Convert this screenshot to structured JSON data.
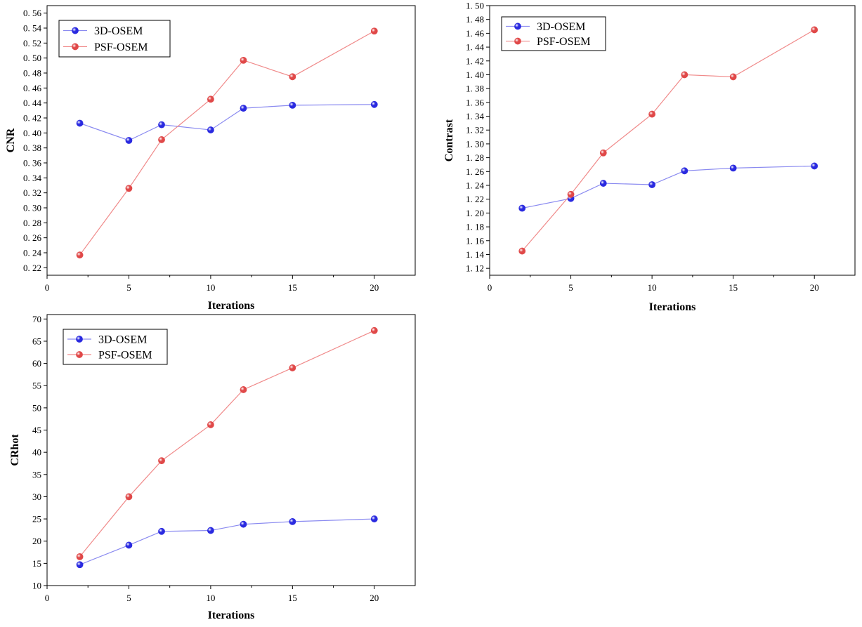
{
  "colors": {
    "series_3d": "#2a2ae0",
    "series_psf": "#e04848",
    "line_3d": "#8a8af0",
    "line_psf": "#f08a8a",
    "axis": "#000000",
    "background": "#ffffff"
  },
  "chart_data": [
    {
      "type": "line",
      "id": "cnr",
      "xlabel": "Iterations",
      "ylabel": "CNR",
      "xlim": [
        0,
        22.5
      ],
      "ylim": [
        0.21,
        0.57
      ],
      "xticks": [
        0,
        5,
        10,
        15,
        20
      ],
      "xtick_labels": [
        "0",
        "5",
        "10",
        "15",
        "20"
      ],
      "yticks": [
        0.22,
        0.24,
        0.26,
        0.28,
        0.3,
        0.32,
        0.34,
        0.36,
        0.38,
        0.4,
        0.42,
        0.44,
        0.46,
        0.48,
        0.5,
        0.52,
        0.54,
        0.56
      ],
      "ytick_labels": [
        "0. 22",
        "0. 24",
        "0. 26",
        "0. 28",
        "0. 30",
        "0. 32",
        "0. 34",
        "0. 36",
        "0. 38",
        "0. 40",
        "0. 42",
        "0. 44",
        "0. 46",
        "0. 48",
        "0. 50",
        "0. 52",
        "0. 54",
        "0. 56"
      ],
      "legend_position": "top-left",
      "x": [
        2,
        5,
        7,
        10,
        12,
        15,
        20
      ],
      "series": [
        {
          "name": "3D-OSEM",
          "values": [
            0.413,
            0.39,
            0.411,
            0.404,
            0.433,
            0.437,
            0.438
          ]
        },
        {
          "name": "PSF-OSEM",
          "values": [
            0.237,
            0.326,
            0.391,
            0.445,
            0.497,
            0.475,
            0.536
          ]
        }
      ]
    },
    {
      "type": "line",
      "id": "contrast",
      "xlabel": "Iterations",
      "ylabel": "Contrast",
      "xlim": [
        0,
        22.5
      ],
      "ylim": [
        1.11,
        1.5
      ],
      "xticks": [
        0,
        5,
        10,
        15,
        20
      ],
      "xtick_labels": [
        "0",
        "5",
        "10",
        "15",
        "20"
      ],
      "yticks": [
        1.12,
        1.14,
        1.16,
        1.18,
        1.2,
        1.22,
        1.24,
        1.26,
        1.28,
        1.3,
        1.32,
        1.34,
        1.36,
        1.38,
        1.4,
        1.42,
        1.44,
        1.46,
        1.48,
        1.5
      ],
      "ytick_labels": [
        "1. 12",
        "1. 14",
        "1. 16",
        "1. 18",
        "1. 20",
        "1. 22",
        "1. 24",
        "1. 26",
        "1. 28",
        "1. 30",
        "1. 32",
        "1. 34",
        "1. 36",
        "1. 38",
        "1. 40",
        "1. 42",
        "1. 44",
        "1. 46",
        "1. 48",
        "1. 50"
      ],
      "legend_position": "top-left",
      "x": [
        2,
        5,
        7,
        10,
        12,
        15,
        20
      ],
      "series": [
        {
          "name": "3D-OSEM",
          "values": [
            1.207,
            1.221,
            1.243,
            1.241,
            1.261,
            1.265,
            1.268
          ]
        },
        {
          "name": "PSF-OSEM",
          "values": [
            1.145,
            1.227,
            1.287,
            1.343,
            1.4,
            1.397,
            1.465
          ]
        }
      ]
    },
    {
      "type": "line",
      "id": "crhot",
      "xlabel": "Iterations",
      "ylabel": "CRhot",
      "xlim": [
        0,
        22.5
      ],
      "ylim": [
        10,
        71
      ],
      "xticks": [
        0,
        5,
        10,
        15,
        20
      ],
      "xtick_labels": [
        "0",
        "5",
        "10",
        "15",
        "20"
      ],
      "yticks": [
        10,
        15,
        20,
        25,
        30,
        35,
        40,
        45,
        50,
        55,
        60,
        65,
        70
      ],
      "ytick_labels": [
        "10",
        "15",
        "20",
        "25",
        "30",
        "35",
        "40",
        "45",
        "50",
        "55",
        "60",
        "65",
        "70"
      ],
      "legend_position": "top-left",
      "x": [
        2,
        5,
        7,
        10,
        12,
        15,
        20
      ],
      "series": [
        {
          "name": "3D-OSEM",
          "values": [
            14.7,
            19.1,
            22.2,
            22.4,
            23.8,
            24.4,
            25.0
          ]
        },
        {
          "name": "PSF-OSEM",
          "values": [
            16.5,
            30.0,
            38.1,
            46.2,
            54.1,
            59.0,
            67.4
          ]
        }
      ]
    }
  ]
}
